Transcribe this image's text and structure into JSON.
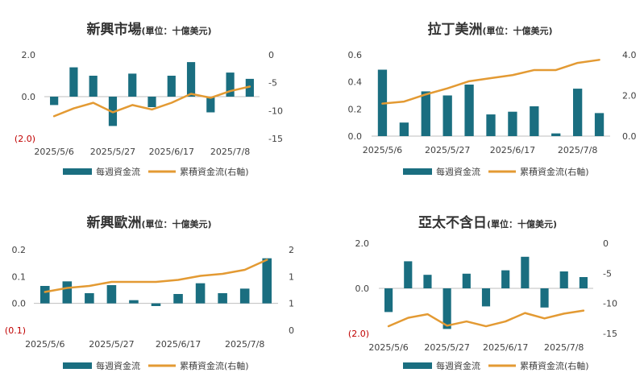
{
  "colors": {
    "bar": "#1a6e80",
    "line": "#e39a33",
    "negative_label": "#c00000",
    "text": "#404040",
    "axis": "#bfbfbf"
  },
  "chart_data": [
    {
      "type": "bar+line",
      "title": "新興市場",
      "unit_note": "(單位：十億美元)",
      "x_ticks": [
        "2025/5/6",
        "2025/5/27",
        "2025/6/17",
        "2025/7/8"
      ],
      "y_left": {
        "ticks": [
          "2.0",
          "0.0",
          "(2.0)"
        ],
        "range": [
          -2.0,
          2.0
        ]
      },
      "y_right": {
        "ticks": [
          "0",
          "-5",
          "-10",
          "-15"
        ],
        "range": [
          -15,
          0
        ]
      },
      "series": [
        {
          "name": "每週資金流",
          "type": "bar",
          "axis": "left",
          "values": [
            -0.4,
            1.4,
            1.0,
            -1.4,
            1.1,
            -0.5,
            1.0,
            1.65,
            -0.75,
            1.15,
            0.85
          ]
        },
        {
          "name": "累積資金流(右軸)",
          "type": "line",
          "axis": "right",
          "values": [
            -11.0,
            -9.6,
            -8.6,
            -10.3,
            -9.0,
            -9.8,
            -8.6,
            -7.0,
            -7.7,
            -6.5,
            -5.7
          ]
        }
      ]
    },
    {
      "type": "bar+line",
      "title": "拉丁美洲",
      "unit_note": "(單位：十億美元)",
      "x_ticks": [
        "2025/5/6",
        "2025/5/27",
        "2025/6/17",
        "2025/7/8"
      ],
      "y_left": {
        "ticks": [
          "0.6",
          "0.4",
          "0.2",
          "0.0"
        ],
        "range": [
          0,
          0.6
        ]
      },
      "y_right": {
        "ticks": [
          "4.0",
          "2.0",
          "0.0"
        ],
        "range": [
          0,
          4.0
        ]
      },
      "series": [
        {
          "name": "每週資金流",
          "type": "bar",
          "axis": "left",
          "values": [
            0.49,
            0.1,
            0.33,
            0.3,
            0.38,
            0.16,
            0.18,
            0.22,
            0.02,
            0.35,
            0.17
          ]
        },
        {
          "name": "累積資金流(右軸)",
          "type": "line",
          "axis": "right",
          "values": [
            1.6,
            1.7,
            2.05,
            2.35,
            2.7,
            2.85,
            3.0,
            3.25,
            3.25,
            3.6,
            3.75
          ]
        }
      ]
    },
    {
      "type": "bar+line",
      "title": "新興歐洲",
      "unit_note": "(單位：十億美元)",
      "x_ticks": [
        "2025/5/6",
        "2025/5/27",
        "2025/6/17",
        "2025/7/8"
      ],
      "y_left": {
        "ticks": [
          "0.2",
          "0.1",
          "0.0",
          "(0.1)"
        ],
        "range": [
          -0.1,
          0.2
        ]
      },
      "y_right": {
        "ticks": [
          "2",
          "1",
          "1",
          "0"
        ],
        "range": [
          0,
          2
        ]
      },
      "series": [
        {
          "name": "每週資金流",
          "type": "bar",
          "axis": "left",
          "values": [
            0.065,
            0.082,
            0.038,
            0.068,
            0.012,
            -0.01,
            0.035,
            0.075,
            0.038,
            0.055,
            0.168
          ]
        },
        {
          "name": "累積資金流(右軸)",
          "type": "line",
          "axis": "right",
          "values": [
            0.95,
            1.05,
            1.1,
            1.2,
            1.2,
            1.2,
            1.25,
            1.35,
            1.4,
            1.5,
            1.75
          ]
        }
      ]
    },
    {
      "type": "bar+line",
      "title": "亞太不含日",
      "unit_note": "(單位：十億美元)",
      "x_ticks": [
        "2025/5/6",
        "2025/5/27",
        "2025/6/17",
        "2025/7/8"
      ],
      "y_left": {
        "ticks": [
          "2.0",
          "0.0",
          "(2.0)"
        ],
        "range": [
          -2.0,
          2.0
        ]
      },
      "y_right": {
        "ticks": [
          "0",
          "-5",
          "-10",
          "-15"
        ],
        "range": [
          -15,
          0
        ]
      },
      "series": [
        {
          "name": "每週資金流",
          "type": "bar",
          "axis": "left",
          "values": [
            -1.05,
            1.2,
            0.6,
            -1.8,
            0.65,
            -0.8,
            0.8,
            1.4,
            -0.85,
            0.75,
            0.5
          ]
        },
        {
          "name": "累積資金流(右軸)",
          "type": "line",
          "axis": "right",
          "values": [
            -13.8,
            -12.4,
            -11.8,
            -13.7,
            -13.0,
            -13.8,
            -13.0,
            -11.6,
            -12.5,
            -11.7,
            -11.2
          ]
        }
      ]
    }
  ],
  "legend": {
    "bar_label": "每週資金流",
    "line_label": "累積資金流(右軸)"
  }
}
